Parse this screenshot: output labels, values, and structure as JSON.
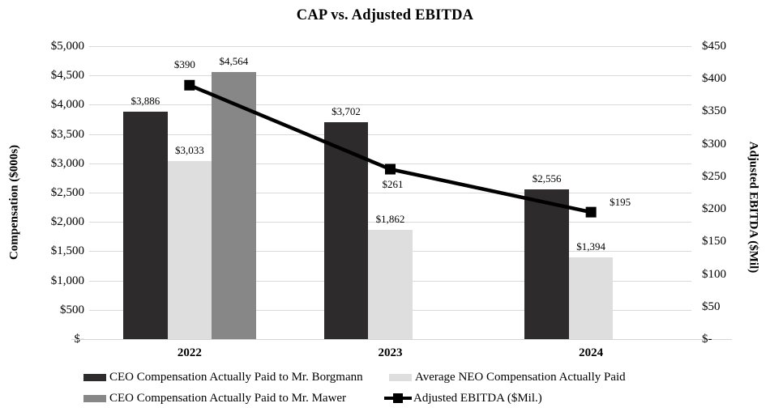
{
  "chart_data": {
    "type": "bar+line",
    "title": "CAP vs. Adjusted EBITDA",
    "categories": [
      "2022",
      "2023",
      "2024"
    ],
    "bar_series": [
      {
        "key": "borgmann",
        "name": "CEO Compensation Actually Paid to Mr. Borgmann",
        "color": "#2d2b2b",
        "values": [
          3886,
          3702,
          2556
        ],
        "labels": [
          "$3,886",
          "$3,702",
          "$2,556"
        ]
      },
      {
        "key": "neo",
        "name": "Average NEO Compensation Actually Paid",
        "color": "#dedede",
        "values": [
          3033,
          1862,
          1394
        ],
        "labels": [
          "$3,033",
          "$1,862",
          "$1,394"
        ]
      },
      {
        "key": "mawer",
        "name": "CEO Compensation Actually Paid to Mr. Mawer",
        "color": "#878787",
        "values": [
          4564,
          null,
          null
        ],
        "labels": [
          "$4,564",
          null,
          null
        ]
      }
    ],
    "line_series": {
      "key": "ebitda",
      "name": "Adjusted EBITDA ($Mil.)",
      "color": "#000000",
      "values": [
        390,
        261,
        195
      ],
      "labels": [
        "$390",
        "$261",
        "$195"
      ],
      "label_placement": [
        "above",
        "below",
        "right"
      ]
    },
    "left_axis": {
      "label": "Compensation ($000s)",
      "min": 0,
      "max": 5000,
      "tick_step": 500,
      "ticks": [
        "$5,000",
        "$4,500",
        "$4,000",
        "$3,500",
        "$3,000",
        "$2,500",
        "$2,000",
        "$1,500",
        "$1,000",
        "$500",
        "$-"
      ]
    },
    "right_axis": {
      "label": "Adjusted EBITDA ($Mil)",
      "min": 0,
      "max": 450,
      "tick_step": 50,
      "ticks": [
        "$450",
        "$400",
        "$350",
        "$300",
        "$250",
        "$200",
        "$150",
        "$100",
        "$50",
        "$-"
      ]
    },
    "grid": "horizontal",
    "legend_position": "bottom",
    "legend": [
      {
        "key": "borgmann",
        "label": "CEO Compensation Actually Paid to Mr. Borgmann",
        "swatch": "bar",
        "color": "#2d2b2b"
      },
      {
        "key": "neo",
        "label": "Average NEO Compensation Actually Paid",
        "swatch": "bar",
        "color": "#dedede"
      },
      {
        "key": "mawer",
        "label": "CEO Compensation Actually Paid to Mr. Mawer",
        "swatch": "bar",
        "color": "#878787"
      },
      {
        "key": "ebitda",
        "label": "Adjusted EBITDA ($Mil.)",
        "swatch": "line-marker",
        "color": "#000000"
      }
    ],
    "colors": {
      "gridline": "#d9d9d9",
      "text": "#000000"
    }
  }
}
